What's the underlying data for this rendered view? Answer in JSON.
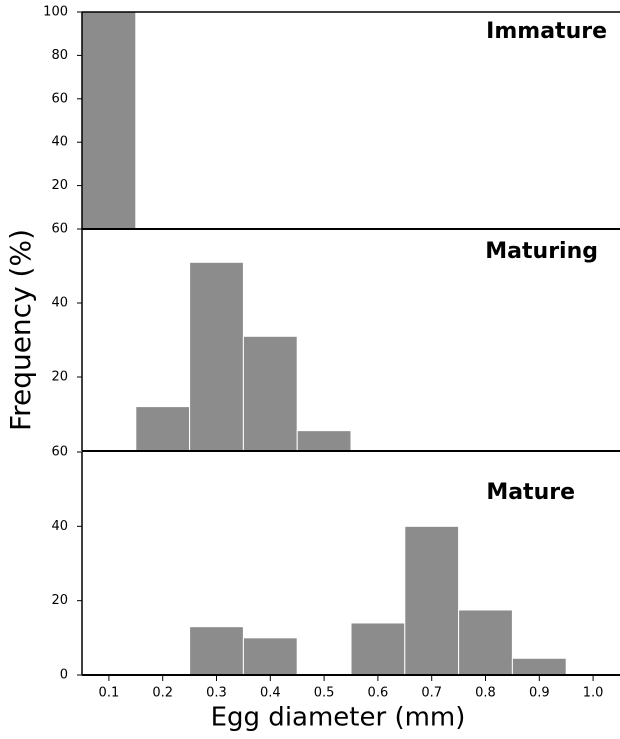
{
  "chart_data": [
    {
      "type": "histogram",
      "title": "Immature",
      "bins": [
        0.05,
        0.15
      ],
      "values": [
        100
      ],
      "color": "#8c8c8c",
      "xlim": [
        0.05,
        1.05
      ],
      "ylim": [
        0,
        100
      ],
      "yticks": [
        20,
        40,
        60,
        80,
        100
      ]
    },
    {
      "type": "histogram",
      "title": "Maturing",
      "bins": [
        0.15,
        0.25,
        0.35,
        0.45,
        0.55
      ],
      "values": [
        12,
        51,
        31,
        5.5
      ],
      "color": "#8c8c8c",
      "xlim": [
        0.05,
        1.05
      ],
      "ylim": [
        0,
        60
      ],
      "yticks": [
        20,
        40,
        60
      ]
    },
    {
      "type": "histogram",
      "title": "Mature",
      "bins": [
        0.25,
        0.35,
        0.45,
        0.55,
        0.65,
        0.75,
        0.85,
        0.95
      ],
      "values": [
        13,
        10,
        0,
        14,
        40,
        17.5,
        4.5
      ],
      "color": "#8c8c8c",
      "xlim": [
        0.05,
        1.05
      ],
      "ylim": [
        0,
        60
      ],
      "yticks": [
        0,
        20,
        40,
        60
      ],
      "xticks": [
        0.1,
        0.2,
        0.3,
        0.4,
        0.5,
        0.6,
        0.7,
        0.8,
        0.9,
        {
          "value": 1,
          "label": "1.0"
        }
      ]
    }
  ],
  "xlabel": "Egg diameter (mm)",
  "ylabel": "Frequency (%)"
}
